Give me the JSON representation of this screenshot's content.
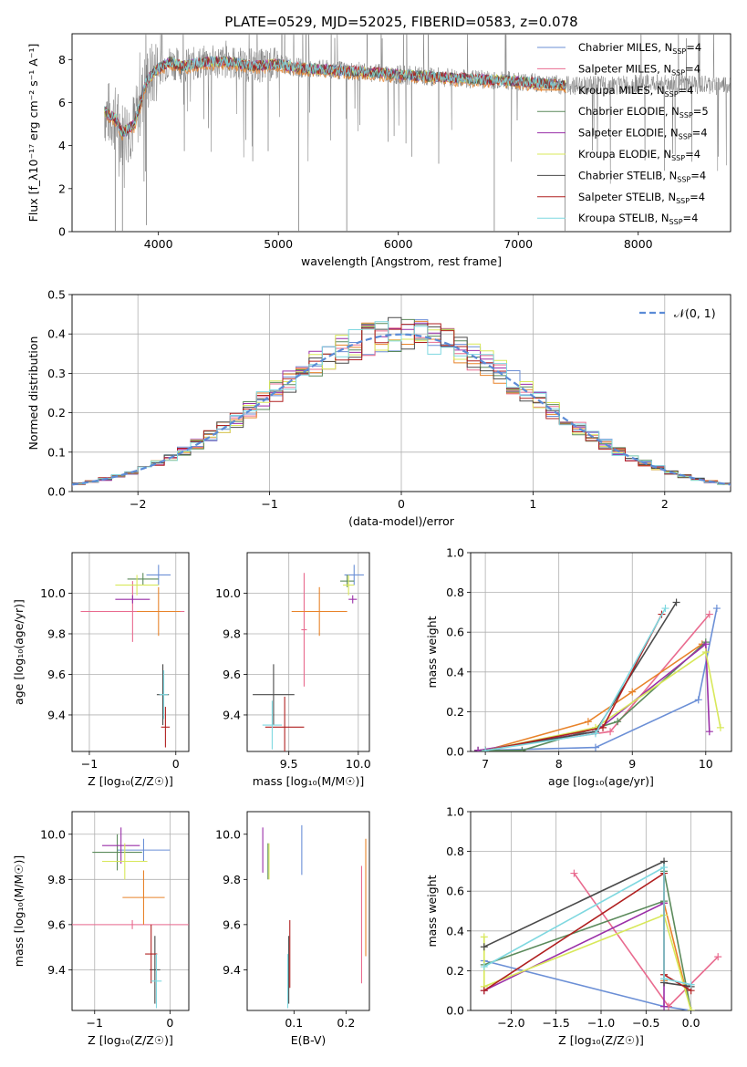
{
  "figure_title": "PLATE=0529, MJD=52025, FIBERID=0583, z=0.078",
  "colors": {
    "Chabrier MILES": "#6b8fd6",
    "Salpeter MILES": "#e96b8f",
    "Kroupa MILES": "#e8832a",
    "Chabrier ELODIE": "#5b8a5b",
    "Salpeter ELODIE": "#9a2fa8",
    "Kroupa ELODIE": "#d8e85a",
    "Chabrier STELIB": "#4a4a4a",
    "Salpeter STELIB": "#b02020",
    "Kroupa STELIB": "#7fd8e0",
    "spectrum": "#808080",
    "normal": "#5b8bd6"
  },
  "chart_data": [
    {
      "id": "spectrum",
      "type": "line",
      "title": "",
      "xlabel": "wavelength [Angstrom, rest frame]",
      "ylabel": "Flux [f_λ10^-17 erg cm^-2 s^-1 A^-1]",
      "xlim": [
        3280,
        8770
      ],
      "ylim": [
        0,
        9.2
      ],
      "xticks": [
        "4000",
        "5000",
        "6000",
        "7000",
        "8000"
      ],
      "yticks": [
        "0",
        "2",
        "4",
        "6",
        "8"
      ],
      "grid": false,
      "legend_position": "right",
      "legend": [
        {
          "model": "Chabrier MILES",
          "n": "4"
        },
        {
          "model": "Salpeter MILES",
          "n": "4"
        },
        {
          "model": "Kroupa MILES",
          "n": "4"
        },
        {
          "model": "Chabrier ELODIE",
          "n": "5"
        },
        {
          "model": "Salpeter ELODIE",
          "n": "4"
        },
        {
          "model": "Kroupa ELODIE",
          "n": "4"
        },
        {
          "model": "Chabrier STELIB",
          "n": "4"
        },
        {
          "model": "Salpeter STELIB",
          "n": "4"
        },
        {
          "model": "Kroupa STELIB",
          "n": "4"
        }
      ],
      "legend_suffix": "N",
      "legend_sub": "SSP",
      "continuum": [
        [
          3550,
          5.6
        ],
        [
          3650,
          5.2
        ],
        [
          3700,
          4.6
        ],
        [
          3800,
          5.0
        ],
        [
          3900,
          7.0
        ],
        [
          4000,
          7.6
        ],
        [
          4100,
          7.9
        ],
        [
          4200,
          7.7
        ],
        [
          4400,
          7.9
        ],
        [
          4600,
          7.9
        ],
        [
          4800,
          7.7
        ],
        [
          5000,
          7.8
        ],
        [
          5200,
          7.6
        ],
        [
          5500,
          7.5
        ],
        [
          5800,
          7.4
        ],
        [
          6000,
          7.3
        ],
        [
          6300,
          7.2
        ],
        [
          6600,
          7.1
        ],
        [
          7000,
          7.0
        ],
        [
          7400,
          6.8
        ],
        [
          7800,
          6.8
        ],
        [
          8200,
          6.9
        ],
        [
          8500,
          6.8
        ],
        [
          8770,
          6.8
        ]
      ]
    },
    {
      "id": "residuals",
      "type": "histogram",
      "xlabel": "(data-model)/error",
      "ylabel": "Normed distribution",
      "xlim": [
        -2.5,
        2.5
      ],
      "ylim": [
        0,
        0.5
      ],
      "xticks": [
        "−2",
        "−1",
        "0",
        "1",
        "2"
      ],
      "yticks": [
        "0.0",
        "0.1",
        "0.2",
        "0.3",
        "0.4",
        "0.5"
      ],
      "grid": true,
      "legend_position": "top-right",
      "legend": "𝒩(0, 1)",
      "bin_width": 0.1
    },
    {
      "id": "age_vs_Z",
      "type": "errorbar",
      "xlabel": "Z [log₁₀(Z/Z☉)]",
      "ylabel": "age  [log₁₀(age/yr)]",
      "xlim": [
        -1.2,
        0.15
      ],
      "ylim": [
        9.22,
        10.2
      ],
      "xticks": [
        "−1",
        "0"
      ],
      "yticks": [
        "9.4",
        "9.6",
        "9.8",
        "10.0"
      ],
      "grid": true,
      "points": [
        {
          "model": "Chabrier MILES",
          "x": -0.2,
          "y": 10.09,
          "xerr": 0.14,
          "yerr": 0.05
        },
        {
          "model": "Salpeter MILES",
          "x": -0.5,
          "y": 9.91,
          "xerr": 0.6,
          "yerr": 0.15
        },
        {
          "model": "Kroupa MILES",
          "x": -0.2,
          "y": 9.91,
          "xerr": 0.25,
          "yerr": 0.12
        },
        {
          "model": "Chabrier ELODIE",
          "x": -0.38,
          "y": 10.07,
          "xerr": 0.18,
          "yerr": 0.03
        },
        {
          "model": "Salpeter ELODIE",
          "x": -0.5,
          "y": 9.97,
          "xerr": 0.2,
          "yerr": 0.02
        },
        {
          "model": "Kroupa ELODIE",
          "x": -0.45,
          "y": 10.04,
          "xerr": 0.25,
          "yerr": 0.05
        },
        {
          "model": "Chabrier STELIB",
          "x": -0.15,
          "y": 9.5,
          "xerr": 0.07,
          "yerr": 0.15
        },
        {
          "model": "Salpeter STELIB",
          "x": -0.12,
          "y": 9.34,
          "xerr": 0.05,
          "yerr": 0.1
        },
        {
          "model": "Kroupa STELIB",
          "x": -0.14,
          "y": 9.5,
          "xerr": 0.05,
          "yerr": 0.12
        }
      ]
    },
    {
      "id": "age_vs_mass",
      "type": "errorbar",
      "xlabel": "mass [log₁₀(M/M☉)]",
      "ylabel": "",
      "xlim": [
        9.2,
        10.08
      ],
      "ylim": [
        9.22,
        10.2
      ],
      "xticks": [
        "9.5",
        "10.0"
      ],
      "yticks": [
        "9.4",
        "9.6",
        "9.8",
        "10.0"
      ],
      "grid": true,
      "points": [
        {
          "model": "Chabrier MILES",
          "x": 9.97,
          "y": 10.09,
          "xerr": 0.07,
          "yerr": 0.05
        },
        {
          "model": "Salpeter MILES",
          "x": 9.61,
          "y": 9.82,
          "xerr": 0.02,
          "yerr": 0.28
        },
        {
          "model": "Kroupa MILES",
          "x": 9.72,
          "y": 9.91,
          "xerr": 0.2,
          "yerr": 0.12
        },
        {
          "model": "Chabrier ELODIE",
          "x": 9.92,
          "y": 10.06,
          "xerr": 0.05,
          "yerr": 0.03
        },
        {
          "model": "Salpeter ELODIE",
          "x": 9.96,
          "y": 9.97,
          "xerr": 0.03,
          "yerr": 0.02
        },
        {
          "model": "Kroupa ELODIE",
          "x": 9.93,
          "y": 10.04,
          "xerr": 0.04,
          "yerr": 0.05
        },
        {
          "model": "Chabrier STELIB",
          "x": 9.39,
          "y": 9.5,
          "xerr": 0.15,
          "yerr": 0.15
        },
        {
          "model": "Salpeter STELIB",
          "x": 9.47,
          "y": 9.34,
          "xerr": 0.14,
          "yerr": 0.15
        },
        {
          "model": "Kroupa STELIB",
          "x": 9.38,
          "y": 9.35,
          "xerr": 0.07,
          "yerr": 0.12
        }
      ]
    },
    {
      "id": "weight_vs_age",
      "type": "line",
      "xlabel": "age  [log₁₀(age/yr)]",
      "ylabel": "mass weight",
      "xlim": [
        6.8,
        10.35
      ],
      "ylim": [
        0,
        1.0
      ],
      "xticks": [
        "7",
        "8",
        "9",
        "10"
      ],
      "yticks": [
        "0.0",
        "0.2",
        "0.4",
        "0.6",
        "0.8",
        "1.0"
      ],
      "grid": true,
      "series": [
        {
          "model": "Chabrier MILES",
          "x": [
            6.9,
            8.5,
            9.9,
            10.15
          ],
          "y": [
            0.005,
            0.02,
            0.26,
            0.72
          ]
        },
        {
          "model": "Salpeter MILES",
          "x": [
            6.9,
            8.7,
            10.05
          ],
          "y": [
            0.005,
            0.1,
            0.69
          ]
        },
        {
          "model": "Kroupa MILES",
          "x": [
            7.0,
            8.4,
            9.0,
            9.95
          ],
          "y": [
            0.005,
            0.15,
            0.3,
            0.54
          ]
        },
        {
          "model": "Chabrier ELODIE",
          "x": [
            6.9,
            7.5,
            8.8,
            10.0
          ],
          "y": [
            0.005,
            0.005,
            0.15,
            0.55
          ]
        },
        {
          "model": "Salpeter ELODIE",
          "x": [
            6.9,
            8.5,
            10.0,
            10.05
          ],
          "y": [
            0.005,
            0.1,
            0.54,
            0.1
          ]
        },
        {
          "model": "Kroupa ELODIE",
          "x": [
            7.0,
            8.5,
            10.0,
            10.2
          ],
          "y": [
            0.005,
            0.12,
            0.5,
            0.12
          ]
        },
        {
          "model": "Chabrier STELIB",
          "x": [
            7.0,
            8.5,
            9.6
          ],
          "y": [
            0.005,
            0.1,
            0.75
          ]
        },
        {
          "model": "Salpeter STELIB",
          "x": [
            7.0,
            8.6,
            9.4
          ],
          "y": [
            0.005,
            0.12,
            0.69
          ]
        },
        {
          "model": "Kroupa STELIB",
          "x": [
            7.0,
            8.5,
            9.45
          ],
          "y": [
            0.005,
            0.09,
            0.72
          ]
        }
      ]
    },
    {
      "id": "mass_vs_Z",
      "type": "errorbar",
      "xlabel": "Z [log₁₀(Z/Z☉)]",
      "ylabel": "mass [log₁₀(M/M☉)]",
      "xlim": [
        -1.3,
        0.25
      ],
      "ylim": [
        9.22,
        10.1
      ],
      "xticks": [
        "−1",
        "0"
      ],
      "yticks": [
        "9.4",
        "9.6",
        "9.8",
        "10.0"
      ],
      "grid": true,
      "points": [
        {
          "model": "Chabrier MILES",
          "x": -0.35,
          "y": 9.93,
          "xerr": 0.35,
          "yerr": 0.05
        },
        {
          "model": "Salpeter MILES",
          "x": -0.5,
          "y": 9.6,
          "xerr": 0.8,
          "yerr": 0.02
        },
        {
          "model": "Kroupa MILES",
          "x": -0.35,
          "y": 9.72,
          "xerr": 0.28,
          "yerr": 0.12
        },
        {
          "model": "Chabrier ELODIE",
          "x": -0.7,
          "y": 9.92,
          "xerr": 0.33,
          "yerr": 0.08
        },
        {
          "model": "Salpeter ELODIE",
          "x": -0.65,
          "y": 9.95,
          "xerr": 0.25,
          "yerr": 0.08
        },
        {
          "model": "Kroupa ELODIE",
          "x": -0.6,
          "y": 9.88,
          "xerr": 0.3,
          "yerr": 0.08
        },
        {
          "model": "Chabrier STELIB",
          "x": -0.2,
          "y": 9.4,
          "xerr": 0.07,
          "yerr": 0.15
        },
        {
          "model": "Salpeter STELIB",
          "x": -0.25,
          "y": 9.47,
          "xerr": 0.08,
          "yerr": 0.13
        },
        {
          "model": "Kroupa STELIB",
          "x": -0.18,
          "y": 9.35,
          "xerr": 0.07,
          "yerr": 0.12
        }
      ]
    },
    {
      "id": "mass_vs_ebv",
      "type": "errorbar",
      "xlabel": "E(B-V)",
      "ylabel": "",
      "xlim": [
        0.01,
        0.245
      ],
      "ylim": [
        9.22,
        10.1
      ],
      "xticks": [
        "0.1",
        "0.2"
      ],
      "yticks": [
        "9.4",
        "9.6",
        "9.8",
        "10.0"
      ],
      "grid": false,
      "points": [
        {
          "model": "Chabrier MILES",
          "x": 0.115,
          "y": 9.93,
          "xerr": 0,
          "yerr": 0.11
        },
        {
          "model": "Salpeter MILES",
          "x": 0.23,
          "y": 9.6,
          "xerr": 0,
          "yerr": 0.26
        },
        {
          "model": "Kroupa MILES",
          "x": 0.238,
          "y": 9.72,
          "xerr": 0,
          "yerr": 0.26
        },
        {
          "model": "Chabrier ELODIE",
          "x": 0.05,
          "y": 9.88,
          "xerr": 0,
          "yerr": 0.08
        },
        {
          "model": "Salpeter ELODIE",
          "x": 0.04,
          "y": 9.93,
          "xerr": 0,
          "yerr": 0.1
        },
        {
          "model": "Kroupa ELODIE",
          "x": 0.052,
          "y": 9.88,
          "xerr": 0,
          "yerr": 0.08
        },
        {
          "model": "Chabrier STELIB",
          "x": 0.09,
          "y": 9.4,
          "xerr": 0,
          "yerr": 0.15
        },
        {
          "model": "Salpeter STELIB",
          "x": 0.092,
          "y": 9.47,
          "xerr": 0,
          "yerr": 0.15
        },
        {
          "model": "Kroupa STELIB",
          "x": 0.088,
          "y": 9.35,
          "xerr": 0,
          "yerr": 0.12
        }
      ]
    },
    {
      "id": "weight_vs_Z",
      "type": "line",
      "xlabel": "Z [log₁₀(Z/Z☉)]",
      "ylabel": "mass weight",
      "xlim": [
        -2.45,
        0.45
      ],
      "ylim": [
        0,
        1.0
      ],
      "xticks": [
        "−2.0",
        "−1.5",
        "−1.0",
        "−0.5",
        "0.0"
      ],
      "yticks": [
        "0.0",
        "0.2",
        "0.4",
        "0.6",
        "0.8",
        "1.0"
      ],
      "grid": true,
      "series": [
        {
          "model": "Chabrier MILES",
          "x": [
            -2.3,
            -0.3,
            0.0
          ],
          "y": [
            0.25,
            0.02,
            0.0
          ]
        },
        {
          "model": "Salpeter MILES",
          "x": [
            -1.3,
            -0.25,
            0.3
          ],
          "y": [
            0.69,
            0.02,
            0.27
          ]
        },
        {
          "model": "Kroupa MILES",
          "x": [
            -0.3,
            -0.3,
            0.0
          ],
          "y": [
            0.15,
            0.54,
            0.0
          ]
        },
        {
          "model": "Chabrier ELODIE",
          "x": [
            -2.3,
            -0.3,
            -0.3,
            0.0
          ],
          "y": [
            0.23,
            0.55,
            0.7,
            0.0
          ]
        },
        {
          "model": "Salpeter ELODIE",
          "x": [
            -2.3,
            -0.3,
            -0.3
          ],
          "y": [
            0.1,
            0.54,
            0.02
          ]
        },
        {
          "model": "Kroupa ELODIE",
          "x": [
            -2.3,
            -2.3,
            -0.3,
            0.0
          ],
          "y": [
            0.37,
            0.12,
            0.48,
            0.0
          ]
        },
        {
          "model": "Chabrier STELIB",
          "x": [
            -2.3,
            -0.3,
            -0.3,
            0.0
          ],
          "y": [
            0.32,
            0.75,
            0.14,
            0.12
          ]
        },
        {
          "model": "Salpeter STELIB",
          "x": [
            -2.3,
            -0.3,
            -0.3,
            0.0
          ],
          "y": [
            0.1,
            0.69,
            0.18,
            0.1
          ]
        },
        {
          "model": "Kroupa STELIB",
          "x": [
            -2.3,
            -0.3,
            -0.3,
            0.0
          ],
          "y": [
            0.22,
            0.72,
            0.16,
            0.13
          ]
        }
      ]
    }
  ]
}
